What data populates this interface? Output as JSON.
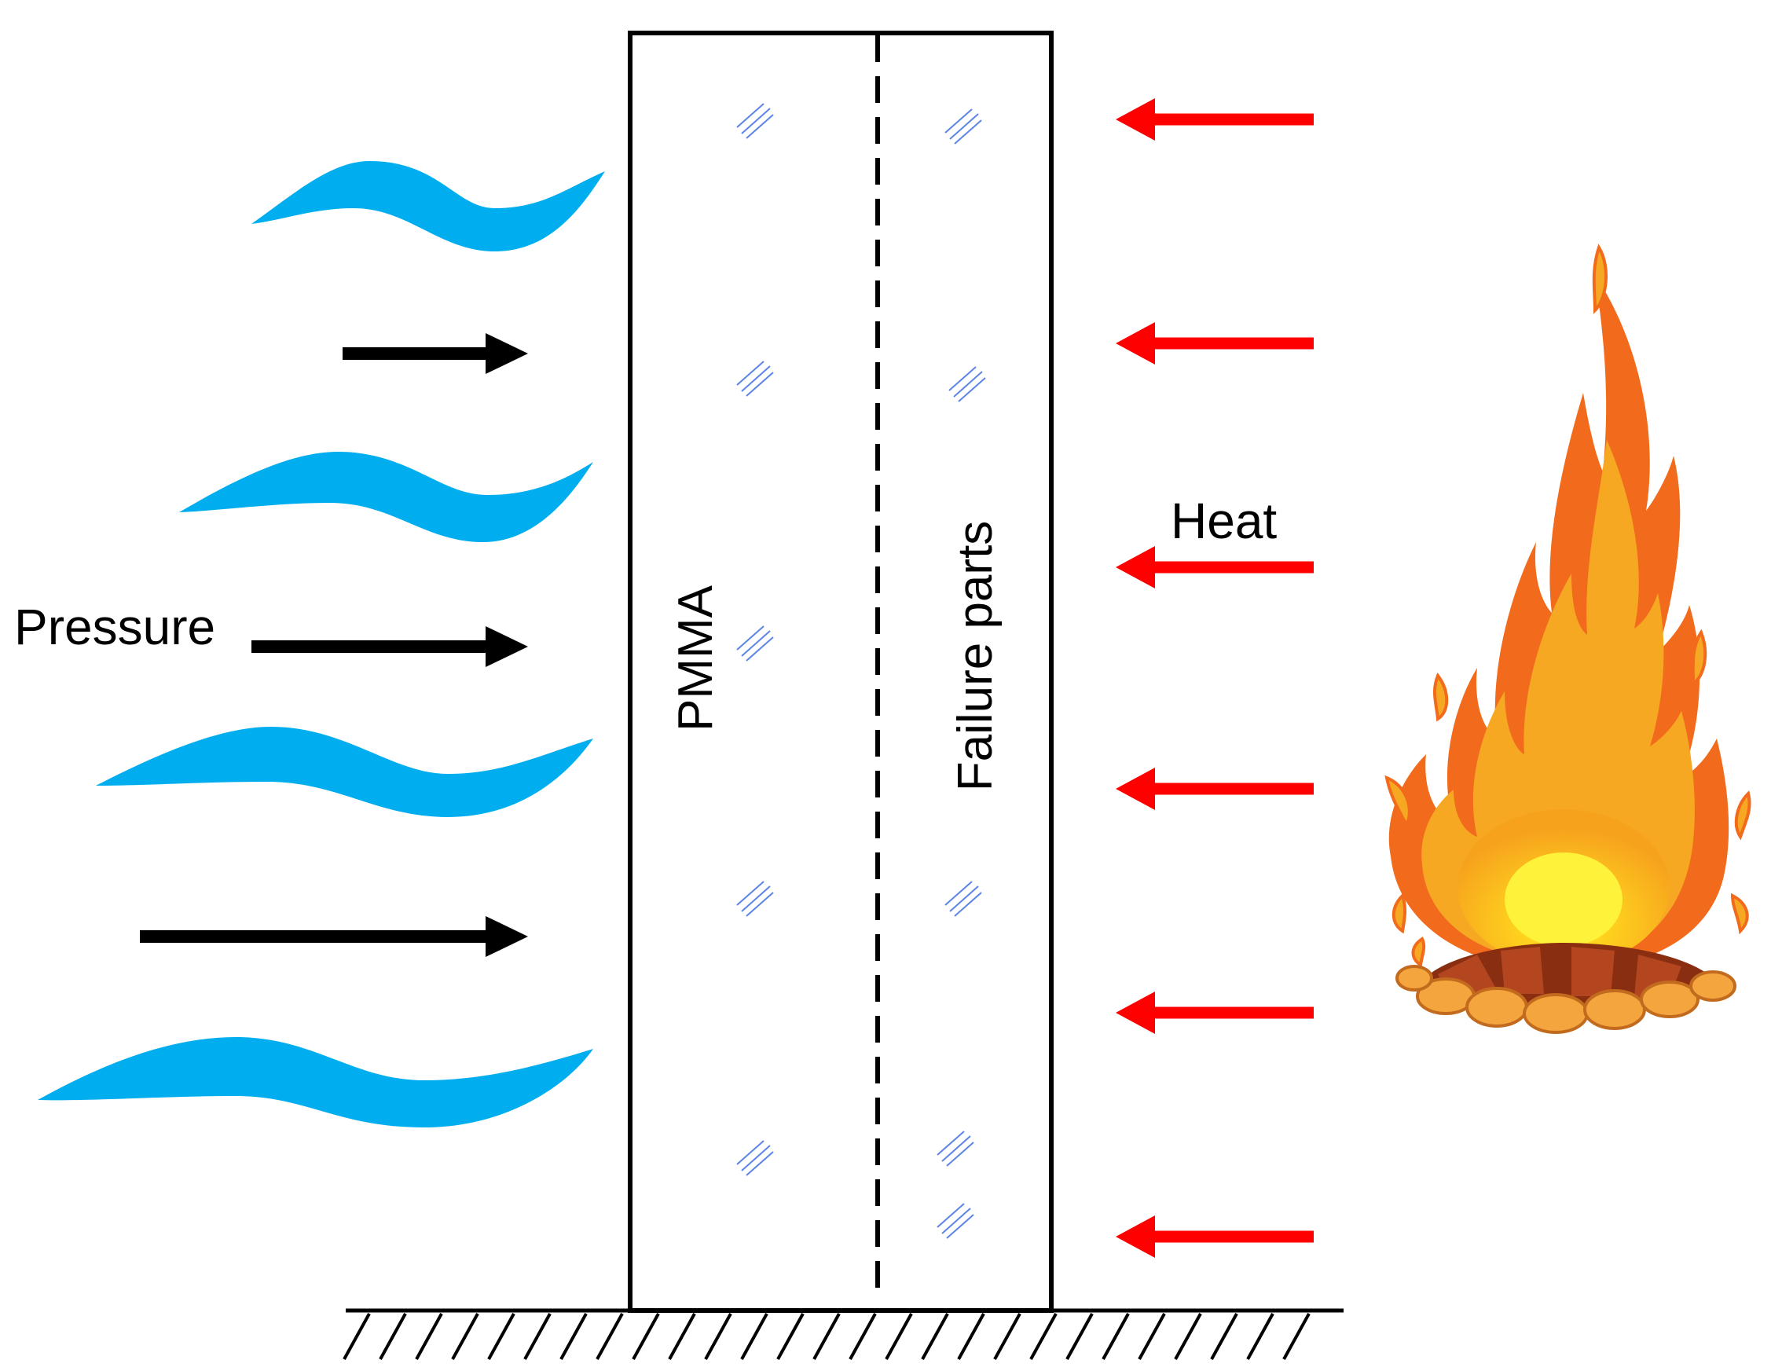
{
  "labels": {
    "pressure": "Pressure",
    "heat": "Heat",
    "pmma": "PMMA",
    "failure_parts": "Failure parts"
  },
  "colors": {
    "outline": "#000000",
    "wind_wave": "#00adef",
    "heat_arrow": "#ff0000",
    "pressure_arrow": "#000000",
    "glass_hatch": "#5b84e6",
    "flame_outer": "#f26b1d",
    "flame_mid": "#f7a823",
    "flame_core": "#ffe833",
    "log": "#b3461e"
  },
  "icons": {
    "wind": "wind-wave-icon",
    "fire": "campfire-icon",
    "ground": "fixed-ground-hatch",
    "glass": "glass-hatch-icon"
  }
}
